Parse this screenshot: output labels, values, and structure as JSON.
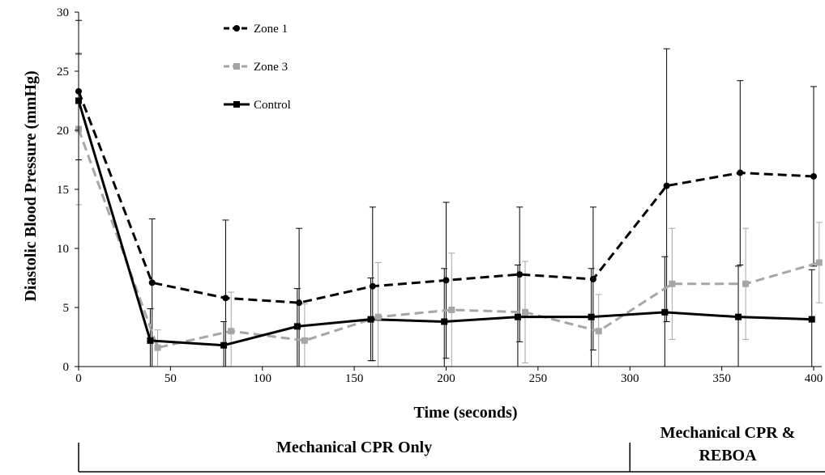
{
  "chart_data": {
    "type": "line",
    "xlabel": "Time (seconds)",
    "ylabel": "Diastolic Blood Pressure (mmHg)",
    "xlim": [
      0,
      400
    ],
    "ylim": [
      0,
      30
    ],
    "xticks": [
      0,
      50,
      100,
      150,
      200,
      250,
      300,
      350,
      400
    ],
    "yticks": [
      0,
      5,
      10,
      15,
      20,
      25,
      30
    ],
    "grid": false,
    "legend_position": "top-left",
    "series": [
      {
        "name": "Zone 1",
        "style": "dashed",
        "marker": "circle",
        "color": "#000000",
        "x": [
          0,
          40,
          80,
          120,
          160,
          200,
          240,
          280,
          320,
          360,
          400
        ],
        "y": [
          23.3,
          7.1,
          5.8,
          5.4,
          6.8,
          7.3,
          7.8,
          7.4,
          15.3,
          16.4,
          16.1
        ],
        "err_upper": [
          29.3,
          12.5,
          12.4,
          11.7,
          13.5,
          13.9,
          13.5,
          13.5,
          26.9,
          24.2,
          23.7
        ],
        "err_lower": [
          17.5,
          0,
          0,
          0,
          0.5,
          0.7,
          2.1,
          1.4,
          3.8,
          8.6,
          8.5
        ]
      },
      {
        "name": "Zone 3",
        "style": "dashed",
        "marker": "square",
        "color": "#a6a6a6",
        "x": [
          0,
          43,
          83,
          123,
          163,
          203,
          243,
          283,
          323,
          363,
          403
        ],
        "y": [
          20.1,
          1.6,
          3.0,
          2.2,
          4.2,
          4.8,
          4.6,
          3.0,
          7.0,
          7.0,
          8.8
        ],
        "err_upper": [
          26.4,
          3.1,
          6.3,
          5.3,
          8.8,
          9.6,
          8.9,
          6.1,
          11.7,
          11.7,
          12.2
        ],
        "err_lower": [
          13.7,
          0,
          0,
          0,
          0,
          0,
          0.3,
          0,
          2.3,
          2.3,
          5.4
        ]
      },
      {
        "name": "Control",
        "style": "solid",
        "marker": "square",
        "color": "#000000",
        "x": [
          0,
          39,
          79,
          119,
          159,
          199,
          239,
          279,
          319,
          359,
          399
        ],
        "y": [
          22.5,
          2.2,
          1.8,
          3.4,
          4.0,
          3.8,
          4.2,
          4.2,
          4.6,
          4.2,
          4.0
        ],
        "err_upper": [
          26.5,
          4.9,
          3.8,
          6.6,
          7.5,
          8.3,
          8.6,
          8.3,
          9.3,
          8.5,
          8.2
        ],
        "err_lower": [
          0,
          0,
          0,
          0,
          0.5,
          0,
          0,
          0,
          0,
          0,
          0
        ]
      }
    ],
    "phases": [
      {
        "label": "Mechanical CPR Only",
        "x_start": 0,
        "x_end": 300
      },
      {
        "label": "Mechanical CPR & REBOA",
        "x_start": 300,
        "x_end": 400
      }
    ]
  }
}
